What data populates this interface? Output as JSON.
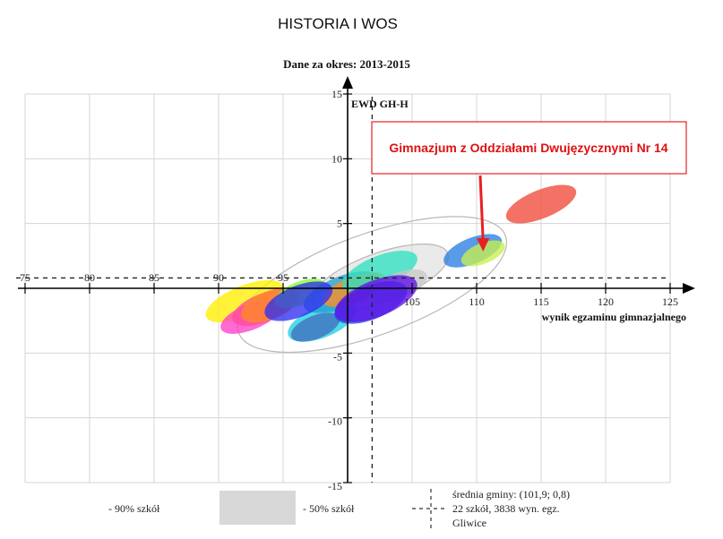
{
  "chart_data": {
    "type": "scatter",
    "title": "HISTORIA I WOS",
    "subtitle": "Dane za okres: 2013-2015",
    "xlabel": "wynik egzaminu gimnazjalnego",
    "ylabel": "EWD GH-H",
    "xlim": [
      75,
      125
    ],
    "ylim": [
      -15,
      15
    ],
    "x_ticks": [
      75,
      80,
      85,
      90,
      95,
      100,
      105,
      110,
      115,
      120,
      125
    ],
    "y_ticks": [
      -15,
      -10,
      -5,
      5,
      10,
      15
    ],
    "x_tick_labels": [
      "75",
      "80",
      "85",
      "90",
      "95",
      "",
      "105",
      "110",
      "115",
      "120",
      "125"
    ],
    "y_tick_labels": [
      "-15",
      "-10",
      "-5",
      "5",
      "10",
      "15"
    ],
    "grid": true,
    "reference_lines": {
      "x": 101.9,
      "y": 0.8
    },
    "band_90": {
      "cx": 101.9,
      "cy": 0.3,
      "rx": 11,
      "ry": 3.9,
      "tilt_deg": -20
    },
    "band_50": {
      "cx": 102.5,
      "cy": 0.8,
      "rx": 5.6,
      "ry": 1.9,
      "tilt_deg": -20
    },
    "schools": [
      {
        "x": 92.0,
        "y": -1.0,
        "sx": 3.2,
        "sy": 1.2,
        "color": "#ffee00"
      },
      {
        "x": 92.5,
        "y": -2.2,
        "sx": 2.5,
        "sy": 1.0,
        "color": "#ff40c8"
      },
      {
        "x": 93.5,
        "y": -1.5,
        "sx": 2.6,
        "sy": 1.1,
        "color": "#ff4aa0"
      },
      {
        "x": 94.0,
        "y": -1.3,
        "sx": 2.4,
        "sy": 1.1,
        "color": "#ff8a20"
      },
      {
        "x": 96.3,
        "y": -0.4,
        "sx": 2.1,
        "sy": 0.9,
        "color": "#80ff30"
      },
      {
        "x": 98.0,
        "y": -2.6,
        "sx": 2.8,
        "sy": 1.2,
        "color": "#20d0e0"
      },
      {
        "x": 99.5,
        "y": -0.3,
        "sx": 3.1,
        "sy": 1.2,
        "color": "#20a0d0"
      },
      {
        "x": 100.5,
        "y": -0.1,
        "sx": 2.6,
        "sy": 1.0,
        "color": "#ff9020"
      },
      {
        "x": 102.5,
        "y": 1.3,
        "sx": 3.1,
        "sy": 1.2,
        "color": "#30e0c0"
      },
      {
        "x": 104.0,
        "y": 0.2,
        "sx": 2.3,
        "sy": 1.0,
        "color": "#c8c8c8"
      },
      {
        "x": 97.5,
        "y": -3.0,
        "sx": 2.0,
        "sy": 0.9,
        "color": "#4070c0"
      },
      {
        "x": 96.2,
        "y": -1.0,
        "sx": 2.8,
        "sy": 1.2,
        "color": "#3030f0"
      },
      {
        "x": 101.8,
        "y": -1.1,
        "sx": 3.0,
        "sy": 1.3,
        "color": "#2050e0"
      },
      {
        "x": 102.2,
        "y": -0.8,
        "sx": 3.4,
        "sy": 1.4,
        "color": "#6010e8"
      },
      {
        "x": 109.7,
        "y": 2.9,
        "sx": 2.4,
        "sy": 1.0,
        "color": "#2a7fe0"
      },
      {
        "x": 110.5,
        "y": 2.7,
        "sx": 1.8,
        "sy": 0.8,
        "color": "#c8f050"
      },
      {
        "x": 115.0,
        "y": 6.5,
        "sx": 2.9,
        "sy": 1.1,
        "color": "#f04a3a"
      }
    ],
    "annotation": {
      "text": "Gimnazjum z Oddziałami Dwujęzycznymi Nr 14",
      "target_x": 110.5,
      "target_y": 2.7
    },
    "legend": {
      "band_90_label": "- 90% szkół",
      "band_50_label": "- 50% szkół",
      "mean_lines": [
        "średnia gminy: (101,9; 0,8)",
        "22 szkół, 3838 wyn. egz.",
        "Gliwice"
      ]
    }
  },
  "colors": {
    "arrow": "#e82020",
    "callout_border": "#e82020",
    "grid": "#d4d4d4",
    "band_50_fill": "#d8d8d8",
    "band_stroke": "#b8b8b8"
  }
}
